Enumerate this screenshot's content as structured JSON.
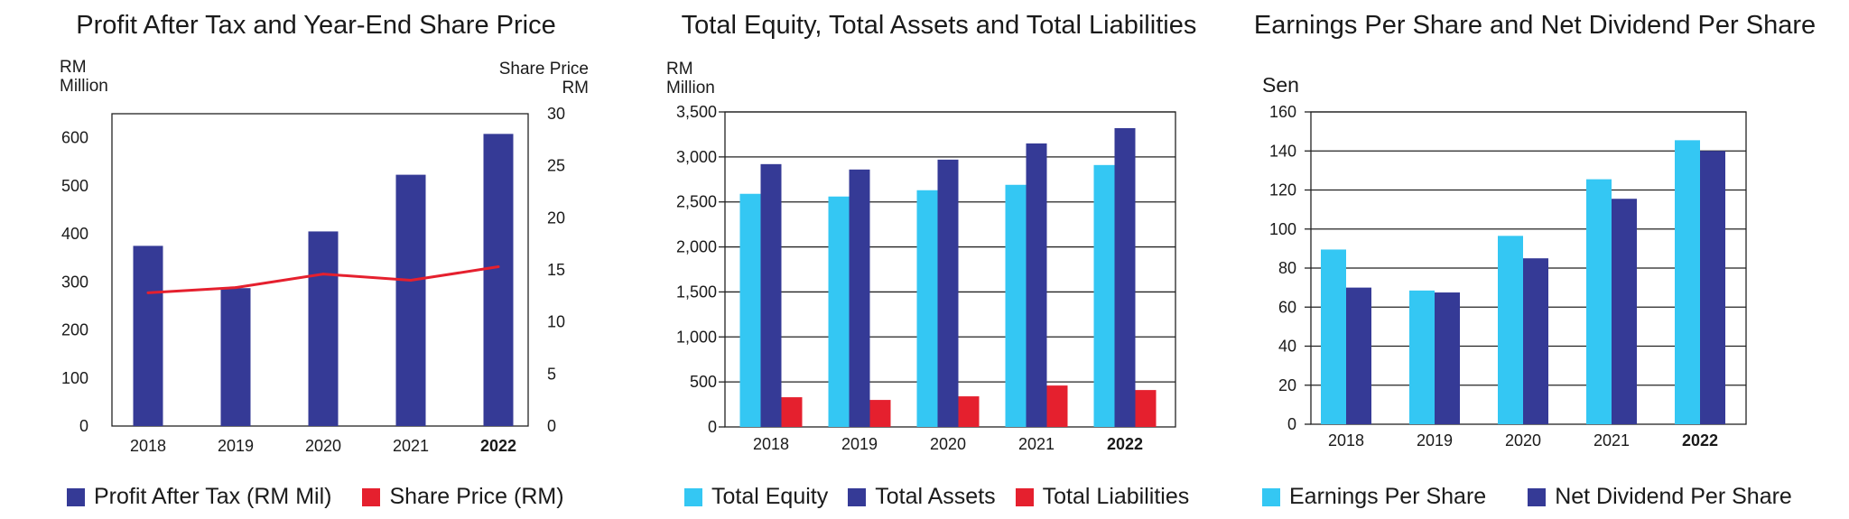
{
  "colors": {
    "navy": "#353a96",
    "cyan": "#34c7f3",
    "red": "#e5202e",
    "grid": "#222222"
  },
  "chart_data": [
    {
      "type": "bar",
      "title": "Profit After Tax and Year-End Share Price",
      "ylabel": "RM Million",
      "ylabel_lines": [
        "RM",
        "Million"
      ],
      "y2label": "Share Price RM",
      "y2label_lines": [
        "Share Price",
        "RM"
      ],
      "categories": [
        "2018",
        "2019",
        "2020",
        "2021",
        "2022"
      ],
      "bold_category": "2022",
      "ylim": [
        0,
        650
      ],
      "yticks": [
        0,
        100,
        200,
        300,
        400,
        500,
        600
      ],
      "y2lim": [
        0,
        30
      ],
      "y2ticks": [
        0,
        5,
        10,
        15,
        20,
        25,
        30
      ],
      "grid": false,
      "legend_placement": "bottom",
      "series": [
        {
          "name": "Profit After Tax (RM Mil)",
          "type": "bar",
          "axis": "left",
          "color": "#353a96",
          "values": [
            375,
            287,
            405,
            523,
            608
          ]
        },
        {
          "name": "Share Price (RM)",
          "type": "line",
          "axis": "right",
          "color": "#e5202e",
          "values": [
            12.8,
            13.3,
            14.6,
            14.0,
            15.3
          ]
        }
      ]
    },
    {
      "type": "bar",
      "title": "Total Equity, Total Assets and Total Liabilities",
      "ylabel": "RM Million",
      "ylabel_lines": [
        "RM",
        "Million"
      ],
      "categories": [
        "2018",
        "2019",
        "2020",
        "2021",
        "2022"
      ],
      "bold_category": "2022",
      "ylim": [
        0,
        3500
      ],
      "yticks": [
        0,
        500,
        1000,
        1500,
        2000,
        2500,
        3000,
        3500
      ],
      "ytick_labels": [
        "0",
        "500",
        "1,000",
        "1,500",
        "2,000",
        "2,500",
        "3,000",
        "3,500"
      ],
      "grid": true,
      "legend_placement": "bottom",
      "series": [
        {
          "name": "Total Equity",
          "color": "#34c7f3",
          "values": [
            2590,
            2560,
            2630,
            2690,
            2910
          ]
        },
        {
          "name": "Total Assets",
          "color": "#353a96",
          "values": [
            2920,
            2860,
            2970,
            3150,
            3320
          ]
        },
        {
          "name": "Total Liabilities",
          "color": "#e5202e",
          "values": [
            330,
            300,
            340,
            460,
            410
          ]
        }
      ]
    },
    {
      "type": "bar",
      "title": "Earnings Per Share and Net Dividend Per Share",
      "ylabel": "Sen",
      "ylabel_lines": [
        "Sen"
      ],
      "categories": [
        "2018",
        "2019",
        "2020",
        "2021",
        "2022"
      ],
      "bold_category": "2022",
      "ylim": [
        0,
        160
      ],
      "yticks": [
        0,
        20,
        40,
        60,
        80,
        100,
        120,
        140,
        160
      ],
      "grid": true,
      "legend_placement": "bottom",
      "series": [
        {
          "name": "Earnings Per Share",
          "color": "#34c7f3",
          "values": [
            89.5,
            68.5,
            96.5,
            125.5,
            145.5
          ]
        },
        {
          "name": "Net Dividend Per Share",
          "color": "#353a96",
          "values": [
            70,
            67.5,
            85,
            115.5,
            140
          ]
        }
      ]
    }
  ]
}
